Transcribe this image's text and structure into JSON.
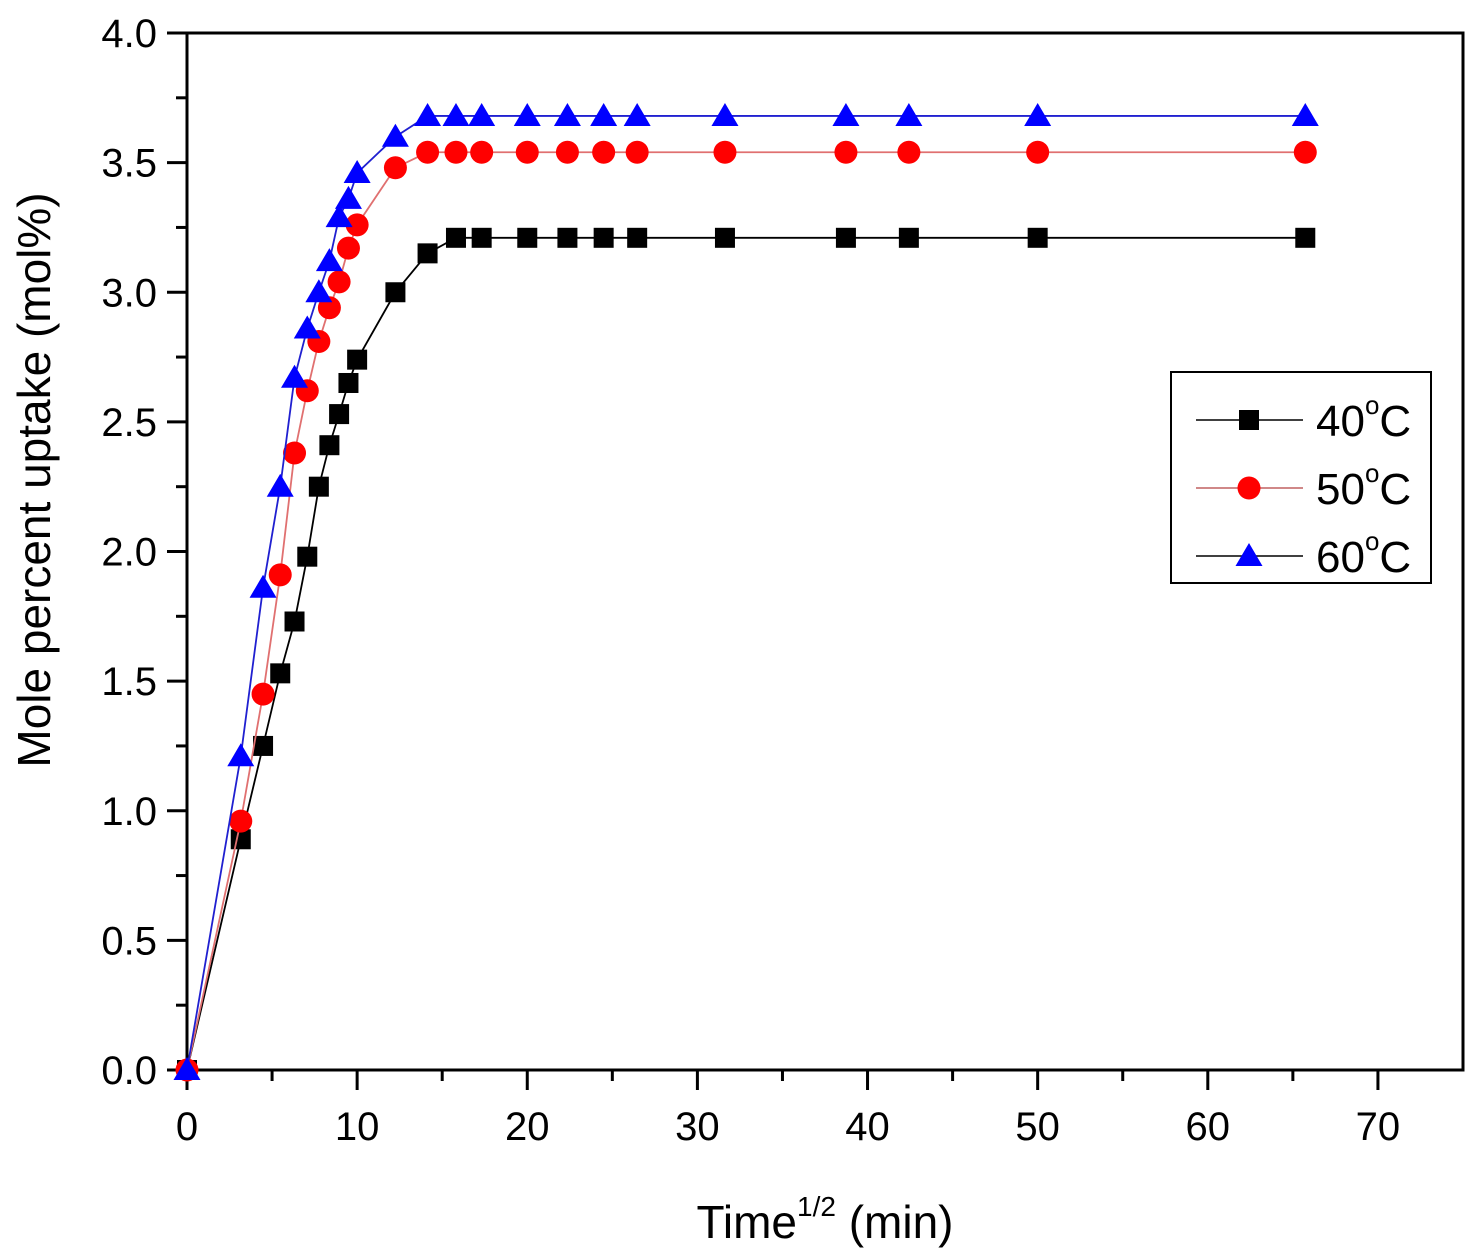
{
  "chart_data": {
    "type": "line",
    "title": "",
    "xlabel": "Time",
    "xlabel_superscript": "1/2",
    "xlabel_unit": " (min)",
    "ylabel": "Mole percent uptake (mol%)",
    "xlim": [
      0,
      75
    ],
    "ylim": [
      0,
      4.0
    ],
    "x_ticks": [
      0,
      10,
      20,
      30,
      40,
      50,
      60,
      70
    ],
    "x_tick_labels": [
      "0",
      "10",
      "20",
      "30",
      "40",
      "50",
      "60",
      "70"
    ],
    "x_minor_step": 5,
    "y_ticks": [
      0.0,
      0.5,
      1.0,
      1.5,
      2.0,
      2.5,
      3.0,
      3.5,
      4.0
    ],
    "y_tick_labels": [
      "0.0",
      "0.5",
      "1.0",
      "1.5",
      "2.0",
      "2.5",
      "3.0",
      "3.5",
      "4.0"
    ],
    "y_minor_step": 0.25,
    "grid": false,
    "legend_position": "center-right",
    "series": [
      {
        "name": "40°C",
        "label_main": "40",
        "label_unit": "C",
        "marker": "square",
        "color": "#000000",
        "line_color": "#000000",
        "x": [
          0,
          3.16,
          4.47,
          5.48,
          6.32,
          7.07,
          7.75,
          8.37,
          8.94,
          9.49,
          10.0,
          12.25,
          14.14,
          15.81,
          17.32,
          20.0,
          22.36,
          24.49,
          26.46,
          31.62,
          38.73,
          42.43,
          50.0,
          65.73
        ],
        "y": [
          0,
          0.89,
          1.25,
          1.53,
          1.73,
          1.98,
          2.25,
          2.41,
          2.53,
          2.65,
          2.74,
          3.0,
          3.15,
          3.21,
          3.21,
          3.21,
          3.21,
          3.21,
          3.21,
          3.21,
          3.21,
          3.21,
          3.21,
          3.21
        ]
      },
      {
        "name": "50°C",
        "label_main": "50",
        "label_unit": "C",
        "marker": "circle",
        "color": "#ff0000",
        "line_color": "#e07070",
        "x": [
          0,
          3.16,
          4.47,
          5.48,
          6.32,
          7.07,
          7.75,
          8.37,
          8.94,
          9.49,
          10.0,
          12.25,
          14.14,
          15.81,
          17.32,
          20.0,
          22.36,
          24.49,
          26.46,
          31.62,
          38.73,
          42.43,
          50.0,
          65.73
        ],
        "y": [
          0,
          0.96,
          1.45,
          1.91,
          2.38,
          2.62,
          2.81,
          2.94,
          3.04,
          3.17,
          3.26,
          3.48,
          3.54,
          3.54,
          3.54,
          3.54,
          3.54,
          3.54,
          3.54,
          3.54,
          3.54,
          3.54,
          3.54,
          3.54
        ]
      },
      {
        "name": "60°C",
        "label_main": "60",
        "label_unit": "C",
        "marker": "triangle",
        "color": "#0000ff",
        "line_color": "#2020d0",
        "x": [
          0,
          3.16,
          4.47,
          5.48,
          6.32,
          7.07,
          7.75,
          8.37,
          8.94,
          9.49,
          10.0,
          12.25,
          14.14,
          15.81,
          17.32,
          20.0,
          22.36,
          24.49,
          26.46,
          31.62,
          38.73,
          42.43,
          50.0,
          65.73
        ],
        "y": [
          0,
          1.21,
          1.86,
          2.25,
          2.67,
          2.86,
          3.0,
          3.12,
          3.29,
          3.36,
          3.46,
          3.6,
          3.68,
          3.68,
          3.68,
          3.68,
          3.68,
          3.68,
          3.68,
          3.68,
          3.68,
          3.68,
          3.68,
          3.68
        ]
      }
    ],
    "legend_degree_symbol": "o"
  }
}
